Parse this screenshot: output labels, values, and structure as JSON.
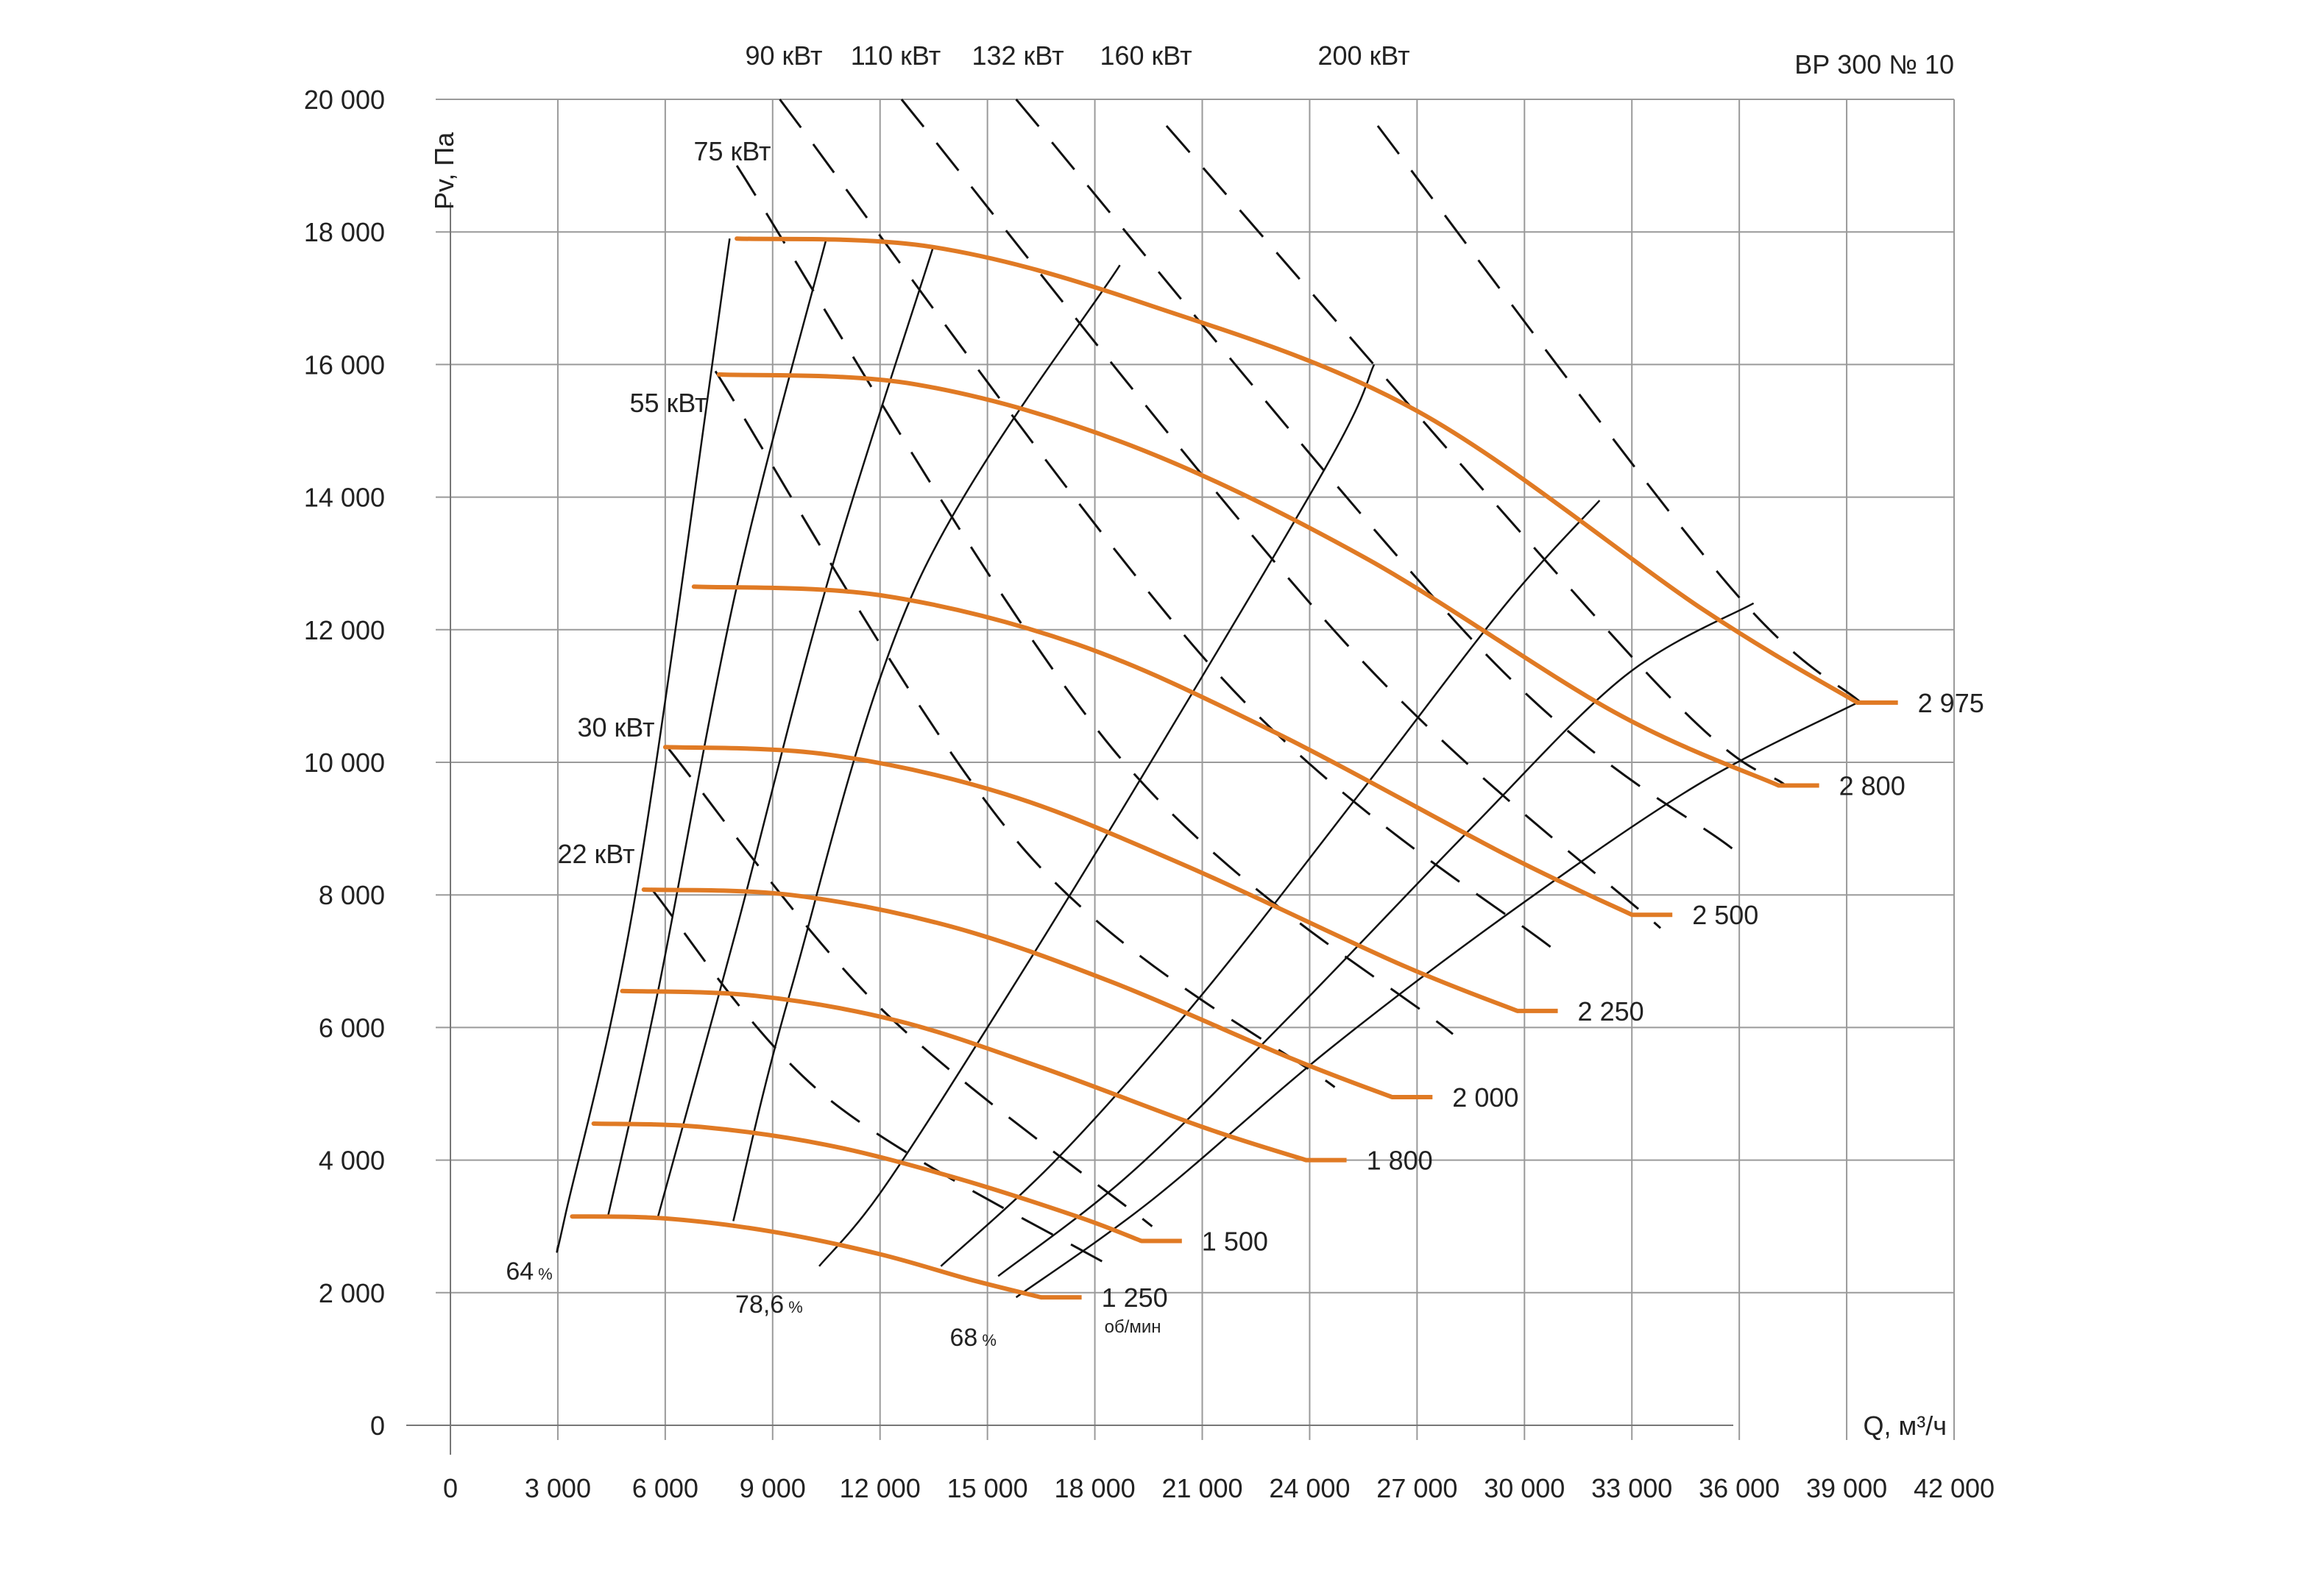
{
  "chart_data": {
    "type": "line",
    "title": "ВР 300 № 10",
    "xlabel": "Q, м³/ч",
    "ylabel": "Pv, Па",
    "xlim": [
      0,
      42000
    ],
    "ylim": [
      0,
      20000
    ],
    "x_ticks": [
      0,
      3000,
      6000,
      9000,
      12000,
      15000,
      18000,
      21000,
      24000,
      27000,
      30000,
      33000,
      36000,
      39000,
      42000
    ],
    "x_tick_labels": [
      "0",
      "3 000",
      "6 000",
      "9 000",
      "12 000",
      "15 000",
      "18 000",
      "21 000",
      "24 000",
      "27 000",
      "30 000",
      "33 000",
      "36 000",
      "39 000",
      "42 000"
    ],
    "y_ticks": [
      0,
      2000,
      4000,
      6000,
      8000,
      10000,
      12000,
      14000,
      16000,
      18000,
      20000
    ],
    "y_tick_labels": [
      "0",
      "2 000",
      "4 000",
      "6 000",
      "8 000",
      "10 000",
      "12 000",
      "14 000",
      "16 000",
      "18 000",
      "20 000"
    ],
    "grid": true,
    "colors": {
      "speed_curve": "#e07a24",
      "efficiency_line": "#111111",
      "power_line": "#111111",
      "grid": "#9a9a9a"
    },
    "speed_unit": "об/мин",
    "speed_series": [
      {
        "name": "1 250",
        "q": [
          3400,
          6000,
          9000,
          12000,
          14500,
          16500
        ],
        "p": [
          3150,
          3120,
          2920,
          2580,
          2200,
          1930
        ]
      },
      {
        "name": "1 500",
        "q": [
          4000,
          7000,
          10500,
          14000,
          17500,
          19300
        ],
        "p": [
          4550,
          4500,
          4230,
          3750,
          3150,
          2780
        ]
      },
      {
        "name": "1 800",
        "q": [
          4800,
          8500,
          12500,
          16500,
          21000,
          23900
        ],
        "p": [
          6550,
          6480,
          6100,
          5400,
          4500,
          4000
        ]
      },
      {
        "name": "2 000",
        "q": [
          5400,
          9500,
          14000,
          18500,
          23500,
          26300
        ],
        "p": [
          8080,
          8000,
          7520,
          6680,
          5530,
          4950
        ]
      },
      {
        "name": "2 250",
        "q": [
          6000,
          10500,
          15500,
          20500,
          26500,
          29800
        ],
        "p": [
          10230,
          10120,
          9520,
          8450,
          6960,
          6250
        ]
      },
      {
        "name": "2 500",
        "q": [
          6800,
          12000,
          17500,
          23000,
          29500,
          33000
        ],
        "p": [
          12650,
          12520,
          11780,
          10460,
          8600,
          7700
        ]
      },
      {
        "name": "2 800",
        "q": [
          7500,
          13000,
          19000,
          25500,
          32500,
          37100
        ],
        "p": [
          15850,
          15700,
          14780,
          13100,
          10760,
          9650
        ]
      },
      {
        "name": "2 975",
        "q": [
          8000,
          13500,
          19500,
          27000,
          35000,
          39300
        ],
        "p": [
          17900,
          17770,
          16900,
          15300,
          12300,
          10900
        ]
      }
    ],
    "speed_label_positions": [
      {
        "name": "1 250",
        "q": 17800,
        "p": 1930
      },
      {
        "name": "1 500",
        "q": 21000,
        "p": 2780
      },
      {
        "name": "1 800",
        "q": 25000,
        "p": 4000
      },
      {
        "name": "2 000",
        "q": 27500,
        "p": 4950
      },
      {
        "name": "2 250",
        "q": 31000,
        "p": 6250
      },
      {
        "name": "2 500",
        "q": 34300,
        "p": 7700
      },
      {
        "name": "2 800",
        "q": 38400,
        "p": 9650
      },
      {
        "name": "2 975",
        "q": 40500,
        "p": 10900
      }
    ],
    "efficiency_lines": [
      {
        "name": "64",
        "q": [
          3000,
          3200,
          5200,
          7800
        ],
        "p": [
          2700,
          3150,
          8100,
          17900
        ]
      },
      {
        "name": "",
        "q": [
          4400,
          5800,
          8000,
          10500
        ],
        "p": [
          3150,
          6550,
          12650,
          17900
        ]
      },
      {
        "name": "",
        "q": [
          5800,
          8000,
          10500,
          13500
        ],
        "p": [
          3150,
          7500,
          12650,
          17800
        ]
      },
      {
        "name": "78,6",
        "q": [
          7900,
          9500,
          13000,
          18700
        ],
        "p": [
          3080,
          6550,
          12650,
          17500
        ]
      },
      {
        "name": "",
        "q": [
          10300,
          12000,
          15000,
          19000,
          24500,
          25800
        ],
        "p": [
          2400,
          3500,
          6000,
          9500,
          14500,
          16000
        ]
      },
      {
        "name": "",
        "q": [
          13700,
          17000,
          21000,
          25500,
          29500,
          32100
        ],
        "p": [
          2400,
          4050,
          6500,
          9600,
          12400,
          13950
        ]
      },
      {
        "name": "",
        "q": [
          15300,
          19000,
          23500,
          28500,
          32800,
          36400
        ],
        "p": [
          2250,
          3800,
          6200,
          9000,
          11300,
          12400
        ]
      },
      {
        "name": "68",
        "q": [
          15800,
          19600,
          24500,
          29500,
          34800,
          39300
        ],
        "p": [
          1930,
          3400,
          5650,
          7700,
          9650,
          10900
        ]
      }
    ],
    "efficiency_label_positions": [
      {
        "name": "64",
        "q": 2200,
        "p": 2200
      },
      {
        "name": "78,6",
        "q": 8900,
        "p": 1700
      },
      {
        "name": "68",
        "q": 14600,
        "p": 1200
      }
    ],
    "efficiency_unit": "%",
    "power_lines": [
      {
        "name": "22 кВт",
        "q": [
          5600,
          10500,
          18600
        ],
        "p": [
          8100,
          4950,
          2350
        ]
      },
      {
        "name": "30 кВт",
        "q": [
          6100,
          12000,
          19600
        ],
        "p": [
          10200,
          6300,
          3000
        ]
      },
      {
        "name": "55 кВт",
        "q": [
          7400,
          16000,
          24700
        ],
        "p": [
          15900,
          8700,
          5100
        ]
      },
      {
        "name": "75 кВт",
        "q": [
          8000,
          18500,
          28000
        ],
        "p": [
          19000,
          10200,
          5900
        ]
      },
      {
        "name": "90 кВт",
        "q": [
          9200,
          21500,
          31000
        ],
        "p": [
          20000,
          11300,
          7100
        ]
      },
      {
        "name": "110 кВт",
        "q": [
          12600,
          25000,
          33800
        ],
        "p": [
          20000,
          11800,
          7500
        ]
      },
      {
        "name": "132 кВт",
        "q": [
          15800,
          28800,
          35800
        ],
        "p": [
          20000,
          11700,
          8700
        ]
      },
      {
        "name": "160 кВт",
        "q": [
          20000,
          33500,
          37300
        ],
        "p": [
          19600,
          11300,
          9650
        ]
      },
      {
        "name": "200 кВт",
        "q": [
          25900,
          35500,
          39400
        ],
        "p": [
          19600,
          12800,
          10900
        ]
      }
    ],
    "power_labels_top": [
      "90 кВт",
      "110 кВт",
      "132 кВт",
      "160 кВт",
      "200 кВт"
    ],
    "power_labels_left": [
      "75 кВт",
      "55 кВт",
      "30 кВт",
      "22 кВт"
    ]
  }
}
